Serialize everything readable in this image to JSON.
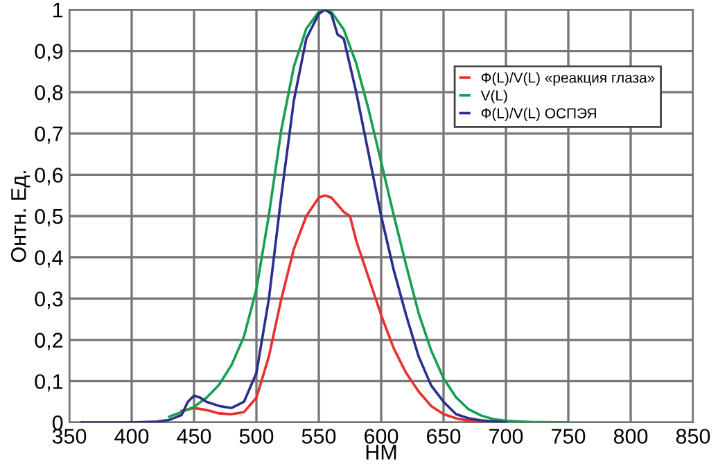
{
  "chart_data": {
    "type": "line",
    "xlabel": "НМ",
    "ylabel": "Онтн. Ед.",
    "xlim": [
      350,
      850
    ],
    "ylim": [
      0,
      1
    ],
    "xticks": [
      350,
      400,
      450,
      500,
      550,
      600,
      650,
      700,
      750,
      800,
      850
    ],
    "yticks": [
      0,
      {
        "value": 0.1,
        "label": "0,1"
      },
      {
        "value": 0.2,
        "label": "0,2"
      },
      {
        "value": 0.3,
        "label": "0,3"
      },
      {
        "value": 0.4,
        "label": "0,4"
      },
      {
        "value": 0.5,
        "label": "0,5"
      },
      {
        "value": 0.6,
        "label": "0,6"
      },
      {
        "value": 0.7,
        "label": "0,7"
      },
      {
        "value": 0.8,
        "label": "0,8"
      },
      {
        "value": 0.9,
        "label": "0,9"
      },
      1
    ],
    "grid": true,
    "legend": "top right",
    "marker": "none",
    "line_style": "solid",
    "series": [
      {
        "name": "Ф(L)/V(L) «реакция глаза»",
        "color": "#e8302c",
        "x": [
          440,
          450,
          460,
          470,
          480,
          490,
          500,
          510,
          520,
          530,
          540,
          550,
          555,
          560,
          570,
          575,
          580,
          590,
          600,
          610,
          620,
          630,
          640,
          650,
          660,
          670,
          680,
          700
        ],
        "values": [
          0.028,
          0.035,
          0.03,
          0.022,
          0.02,
          0.025,
          0.06,
          0.16,
          0.3,
          0.42,
          0.5,
          0.545,
          0.55,
          0.545,
          0.51,
          0.5,
          0.44,
          0.35,
          0.26,
          0.18,
          0.12,
          0.075,
          0.04,
          0.02,
          0.01,
          0.004,
          0.001,
          0
        ]
      },
      {
        "name": "V(L)",
        "color": "#14a050",
        "x": [
          430,
          440,
          450,
          460,
          470,
          480,
          490,
          500,
          510,
          520,
          530,
          540,
          550,
          555,
          560,
          570,
          580,
          590,
          600,
          610,
          620,
          630,
          640,
          650,
          660,
          670,
          680,
          690,
          700,
          720,
          750
        ],
        "values": [
          0.014,
          0.025,
          0.038,
          0.06,
          0.091,
          0.139,
          0.208,
          0.323,
          0.503,
          0.71,
          0.862,
          0.954,
          0.995,
          1,
          0.995,
          0.952,
          0.87,
          0.757,
          0.631,
          0.503,
          0.381,
          0.265,
          0.175,
          0.107,
          0.061,
          0.032,
          0.017,
          0.008,
          0.004,
          0.001,
          0
        ]
      },
      {
        "name": "Ф(L)/V(L) ОСПЭЯ",
        "color": "#2a2e8c",
        "x": [
          360,
          400,
          420,
          430,
          440,
          445,
          450,
          455,
          460,
          470,
          480,
          490,
          500,
          510,
          520,
          530,
          540,
          550,
          555,
          560,
          565,
          570,
          580,
          590,
          600,
          610,
          620,
          630,
          640,
          650,
          660,
          670,
          680,
          700
        ],
        "values": [
          0,
          0,
          0.002,
          0.006,
          0.018,
          0.05,
          0.065,
          0.06,
          0.05,
          0.04,
          0.035,
          0.05,
          0.12,
          0.3,
          0.55,
          0.78,
          0.93,
          0.99,
          1,
          0.99,
          0.94,
          0.93,
          0.8,
          0.65,
          0.5,
          0.37,
          0.26,
          0.16,
          0.09,
          0.05,
          0.02,
          0.01,
          0.005,
          0
        ]
      }
    ]
  }
}
